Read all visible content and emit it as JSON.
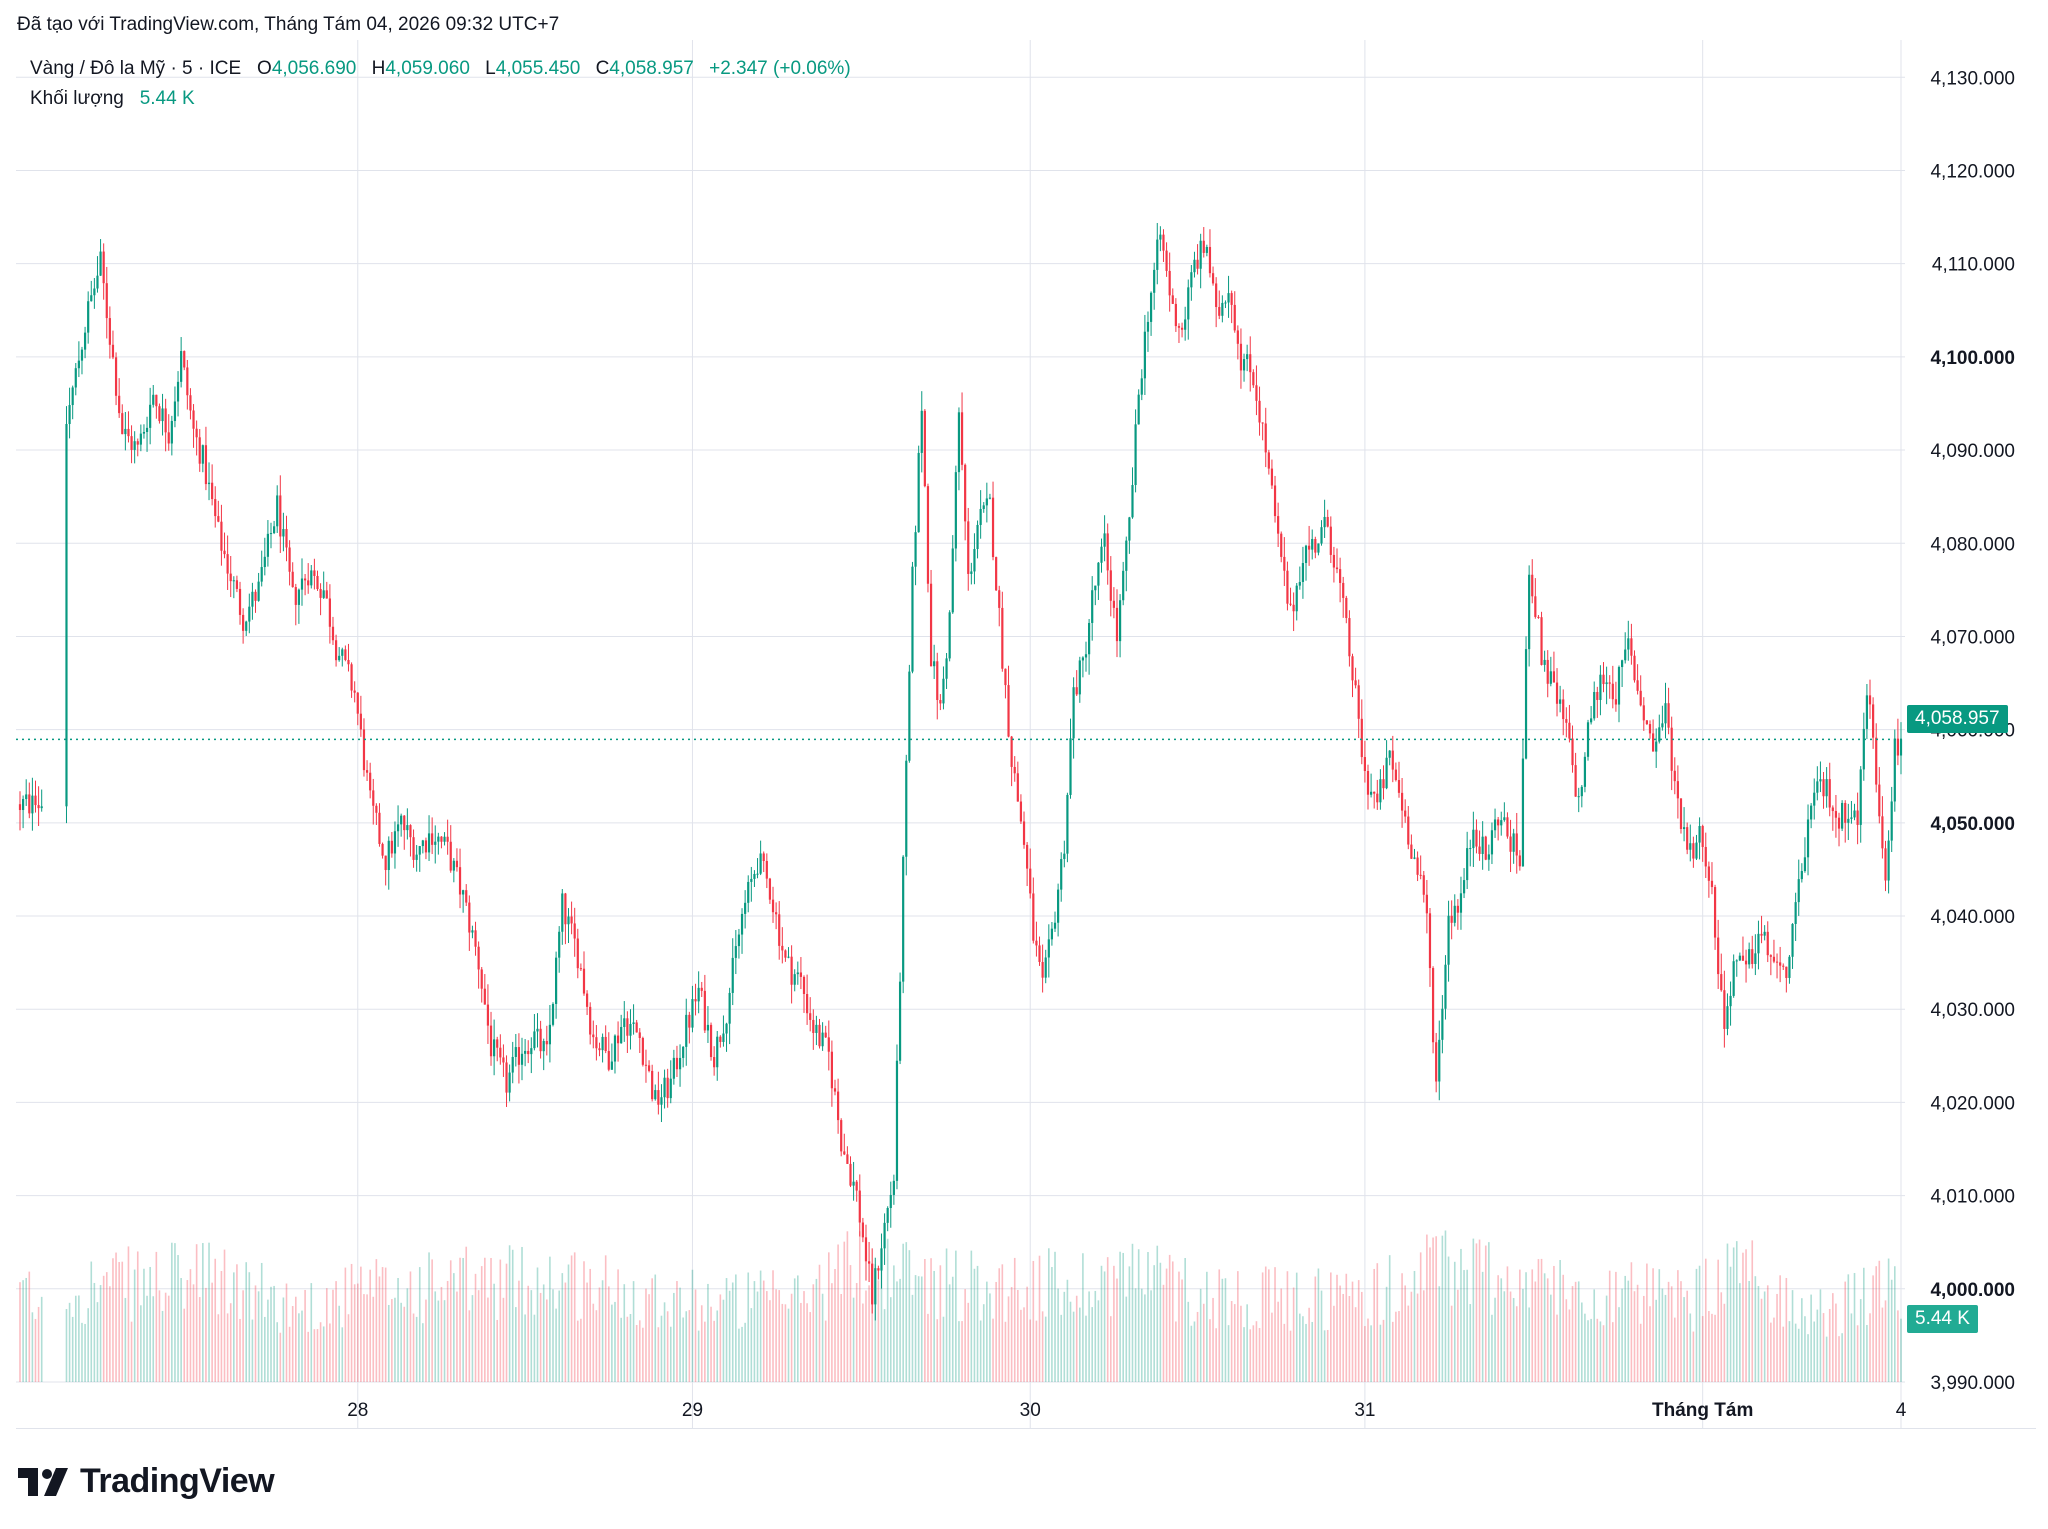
{
  "header": {
    "note": "Đã tạo với TradingView.com, Tháng Tám 04, 2026 09:32 UTC+7"
  },
  "legend": {
    "symbol": "Vàng / Đô la Mỹ · 5 · ICE",
    "o_label": "O",
    "o_value": "4,056.690",
    "h_label": "H",
    "h_value": "4,059.060",
    "l_label": "L",
    "l_value": "4,055.450",
    "c_label": "C",
    "c_value": "4,058.957",
    "change": "+2.347 (+0.06%)",
    "volume_label": "Khối lượng",
    "volume_value": "5.44 K"
  },
  "colors": {
    "up": "#089981",
    "down": "#f23645",
    "grid": "#e0e3eb",
    "text": "#131722"
  },
  "price_tag": "4,058.957",
  "volume_tag": "5.44 K",
  "footer": {
    "logo_text": "TradingView"
  },
  "chart_data": {
    "type": "candlestick",
    "interval": "5",
    "symbol": "Vàng / Đô la Mỹ",
    "ylim": [
      3990,
      4134
    ],
    "y_ticks": [
      "4,130.000",
      "4,120.000",
      "4,110.000",
      "4,100.000",
      "4,090.000",
      "4,080.000",
      "4,070.000",
      "4,060.000",
      "4,050.000",
      "4,040.000",
      "4,030.000",
      "4,020.000",
      "4,010.000",
      "4,000.000",
      "3,990.000"
    ],
    "y_bold_ticks": [
      "4,100.000",
      "4,050.000",
      "4,000.000"
    ],
    "x_labels": [
      "28",
      "29",
      "30",
      "31",
      "Tháng Tám",
      "4"
    ],
    "last_price": 4058.957,
    "last_volume": "5.44 K",
    "grid": true,
    "price_path": [
      [
        0,
        4052
      ],
      [
        8,
        4052
      ],
      [
        15,
        4093
      ],
      [
        22,
        4105
      ],
      [
        26,
        4110
      ],
      [
        33,
        4092
      ],
      [
        38,
        4090
      ],
      [
        43,
        4096
      ],
      [
        48,
        4092
      ],
      [
        52,
        4100
      ],
      [
        56,
        4092
      ],
      [
        59,
        4089
      ],
      [
        64,
        4081
      ],
      [
        72,
        4072
      ],
      [
        77,
        4075
      ],
      [
        83,
        4084
      ],
      [
        88,
        4074
      ],
      [
        93,
        4077
      ],
      [
        98,
        4075
      ],
      [
        102,
        4069
      ],
      [
        108,
        4064
      ],
      [
        113,
        4052
      ],
      [
        118,
        4046
      ],
      [
        123,
        4050
      ],
      [
        128,
        4047
      ],
      [
        133,
        4049
      ],
      [
        138,
        4047
      ],
      [
        143,
        4042
      ],
      [
        148,
        4035
      ],
      [
        152,
        4026
      ],
      [
        157,
        4022
      ],
      [
        162,
        4026
      ],
      [
        166,
        4027
      ],
      [
        170,
        4025
      ],
      [
        175,
        4041
      ],
      [
        180,
        4036
      ],
      [
        185,
        4027
      ],
      [
        190,
        4025
      ],
      [
        195,
        4029
      ],
      [
        200,
        4027
      ],
      [
        205,
        4020
      ],
      [
        210,
        4022
      ],
      [
        214,
        4027
      ],
      [
        219,
        4032
      ],
      [
        224,
        4025
      ],
      [
        228,
        4030
      ],
      [
        233,
        4040
      ],
      [
        238,
        4046
      ],
      [
        242,
        4043
      ],
      [
        247,
        4035
      ],
      [
        252,
        4033
      ],
      [
        256,
        4028
      ],
      [
        261,
        4025
      ],
      [
        265,
        4016
      ],
      [
        270,
        4010
      ],
      [
        275,
        3999
      ],
      [
        278,
        4005
      ],
      [
        282,
        4012
      ],
      [
        285,
        4045
      ],
      [
        288,
        4076
      ],
      [
        291,
        4095
      ],
      [
        294,
        4068
      ],
      [
        297,
        4062
      ],
      [
        300,
        4072
      ],
      [
        303,
        4094
      ],
      [
        306,
        4076
      ],
      [
        309,
        4082
      ],
      [
        313,
        4084
      ],
      [
        317,
        4068
      ],
      [
        320,
        4057
      ],
      [
        324,
        4048
      ],
      [
        327,
        4038
      ],
      [
        330,
        4032
      ],
      [
        333,
        4038
      ],
      [
        337,
        4048
      ],
      [
        340,
        4064
      ],
      [
        343,
        4067
      ],
      [
        346,
        4074
      ],
      [
        350,
        4080
      ],
      [
        354,
        4070
      ],
      [
        358,
        4082
      ],
      [
        361,
        4096
      ],
      [
        364,
        4105
      ],
      [
        368,
        4113
      ],
      [
        372,
        4105
      ],
      [
        375,
        4103
      ],
      [
        379,
        4110
      ],
      [
        383,
        4112
      ],
      [
        386,
        4104
      ],
      [
        390,
        4108
      ],
      [
        394,
        4100
      ],
      [
        398,
        4098
      ],
      [
        402,
        4090
      ],
      [
        406,
        4080
      ],
      [
        410,
        4072
      ],
      [
        414,
        4079
      ],
      [
        418,
        4080
      ],
      [
        422,
        4082
      ],
      [
        426,
        4075
      ],
      [
        430,
        4066
      ],
      [
        434,
        4055
      ],
      [
        438,
        4052
      ],
      [
        442,
        4057
      ],
      [
        446,
        4052
      ],
      [
        450,
        4046
      ],
      [
        454,
        4040
      ],
      [
        457,
        4022
      ],
      [
        461,
        4040
      ],
      [
        465,
        4042
      ],
      [
        469,
        4050
      ],
      [
        473,
        4046
      ],
      [
        477,
        4051
      ],
      [
        481,
        4048
      ],
      [
        484,
        4046
      ],
      [
        487,
        4078
      ],
      [
        491,
        4068
      ],
      [
        495,
        4064
      ],
      [
        499,
        4060
      ],
      [
        503,
        4052
      ],
      [
        507,
        4062
      ],
      [
        511,
        4066
      ],
      [
        515,
        4064
      ],
      [
        519,
        4069
      ],
      [
        523,
        4063
      ],
      [
        527,
        4058
      ],
      [
        531,
        4062
      ],
      [
        535,
        4052
      ],
      [
        539,
        4047
      ],
      [
        543,
        4049
      ],
      [
        546,
        4042
      ],
      [
        550,
        4028
      ],
      [
        553,
        4035
      ],
      [
        557,
        4034
      ],
      [
        561,
        4038
      ],
      [
        565,
        4036
      ],
      [
        569,
        4033
      ],
      [
        573,
        4040
      ],
      [
        577,
        4050
      ],
      [
        581,
        4054
      ],
      [
        584,
        4053
      ],
      [
        587,
        4050
      ],
      [
        590,
        4052
      ],
      [
        593,
        4050
      ],
      [
        596,
        4065
      ],
      [
        599,
        4055
      ],
      [
        602,
        4045
      ],
      [
        605,
        4058
      ],
      [
        607,
        4058
      ]
    ],
    "volume_path": [
      [
        0,
        1.2
      ],
      [
        30,
        1.3
      ],
      [
        60,
        1.4
      ],
      [
        90,
        1.0
      ],
      [
        110,
        1.2
      ],
      [
        140,
        1.3
      ],
      [
        170,
        1.4
      ],
      [
        200,
        1.2
      ],
      [
        220,
        1.1
      ],
      [
        250,
        1.1
      ],
      [
        270,
        1.6
      ],
      [
        290,
        1.4
      ],
      [
        310,
        1.3
      ],
      [
        340,
        1.3
      ],
      [
        360,
        1.5
      ],
      [
        380,
        1.2
      ],
      [
        410,
        1.1
      ],
      [
        440,
        1.2
      ],
      [
        460,
        1.6
      ],
      [
        490,
        1.3
      ],
      [
        510,
        1.2
      ],
      [
        540,
        1.1
      ],
      [
        555,
        1.5
      ],
      [
        580,
        0.9
      ],
      [
        600,
        1.2
      ],
      [
        607,
        1.2
      ]
    ]
  }
}
